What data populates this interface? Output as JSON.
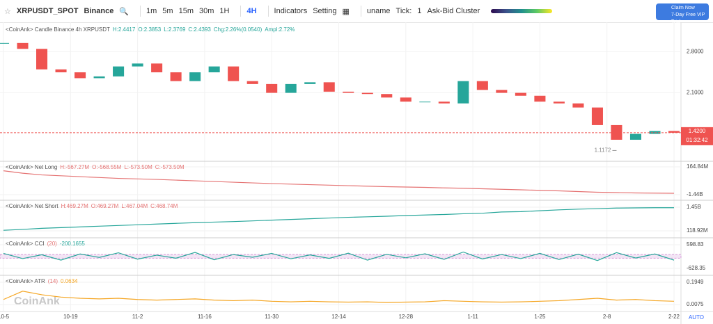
{
  "toolbar": {
    "symbol": "XRPUSDT_SPOT",
    "exchange": "Binance",
    "intervals": [
      "1m",
      "5m",
      "15m",
      "30m",
      "1H",
      "4H"
    ],
    "indicators": "Indicators",
    "setting": "Setting",
    "user": "uname",
    "tick_label": "Tick:",
    "tick_value": "1",
    "cluster": "Ask-Bid Cluster",
    "vip": [
      "Claim Now",
      "7-Day Free VIP Trial"
    ]
  },
  "watermark": "CoinAnk",
  "auto": "AUTO",
  "x": [
    0,
    4,
    8,
    12,
    16,
    20,
    24,
    28,
    32,
    36,
    40,
    44,
    48,
    52,
    56,
    60,
    64,
    68,
    72,
    76,
    80,
    84,
    88,
    92,
    96,
    100,
    104,
    108,
    112,
    116,
    120,
    124,
    128,
    132,
    136,
    140
  ],
  "x_axis": {
    "xlim": [
      0,
      140
    ],
    "xticks": [
      {
        "value": 0,
        "label": "10-5"
      },
      {
        "value": 14,
        "label": "10-19"
      },
      {
        "value": 28,
        "label": "11-2"
      },
      {
        "value": 42,
        "label": "11-16"
      },
      {
        "value": 56,
        "label": "11-30"
      },
      {
        "value": 70,
        "label": "12-14"
      },
      {
        "value": 84,
        "label": "12-28"
      },
      {
        "value": 98,
        "label": "1-11"
      },
      {
        "value": 112,
        "label": "1-25"
      },
      {
        "value": 126,
        "label": "2-8"
      },
      {
        "value": 140,
        "label": "2-22"
      }
    ]
  },
  "panes": [
    {
      "type": "candle",
      "legend": [
        "<CoinAnk> Candle  Binance 4h XRPUSDT",
        "H:2.4417",
        "O:2.3853",
        "L:2.3769",
        "C:2.4393",
        "Chg:2.26%(0.0540)",
        "Ampl:2.72%"
      ],
      "ylim": [
        0.98,
        3.28
      ],
      "yticks": [
        {
          "value": 2.8,
          "label": "2.8000"
        },
        {
          "value": 2.1,
          "label": "2.1000"
        }
      ],
      "values": [
        2.95,
        2.85,
        2.5,
        2.45,
        2.35,
        2.38,
        2.55,
        2.6,
        2.45,
        2.3,
        2.45,
        2.55,
        2.3,
        2.25,
        2.1,
        2.25,
        2.28,
        2.12,
        2.1,
        2.08,
        2.02,
        1.95,
        1.95,
        1.92,
        2.3,
        2.15,
        2.1,
        2.05,
        1.95,
        1.92,
        1.85,
        1.55,
        1.3,
        1.4,
        1.45,
        1.42
      ],
      "up": "#26a69a",
      "down": "#ef5350",
      "last": {
        "value": 1.42,
        "label": "1.4200"
      },
      "countdown": "01:32:42",
      "low": {
        "value": 1.1172,
        "label": "1.1172",
        "x": 128
      }
    },
    {
      "type": "line",
      "legend": [
        "<CoinAnk> Net Long",
        "H:-567.27M",
        "O:-568.55M",
        "L:-573.50M",
        "C:-573.50M"
      ],
      "ylim": [
        -1440,
        164.84
      ],
      "yticks": [
        {
          "value": 164.84,
          "label": "164.84M"
        },
        {
          "value": -1440,
          "label": "-1.44B"
        }
      ],
      "color": "#e57373",
      "values": [
        -60,
        -200,
        -300,
        -350,
        -400,
        -450,
        -500,
        -530,
        -560,
        -600,
        -640,
        -680,
        -720,
        -760,
        -800,
        -830,
        -860,
        -890,
        -920,
        -950,
        -980,
        -1000,
        -1020,
        -1050,
        -1070,
        -1100,
        -1130,
        -1160,
        -1190,
        -1220,
        -1260,
        -1300,
        -1320,
        -1340,
        -1350,
        -1360
      ]
    },
    {
      "type": "line",
      "legend": [
        "<CoinAnk> Net Short",
        "H:469.27M",
        "O:469.27M",
        "L:467.04M",
        "C:468.74M"
      ],
      "ylim": [
        118.92,
        1450
      ],
      "yticks": [
        {
          "value": 1450,
          "label": "1.45B"
        },
        {
          "value": 118.92,
          "label": "118.92M"
        }
      ],
      "color": "#26a69a",
      "values": [
        150,
        200,
        260,
        300,
        340,
        380,
        420,
        460,
        500,
        540,
        580,
        610,
        640,
        680,
        720,
        760,
        800,
        840,
        880,
        910,
        940,
        980,
        1010,
        1040,
        1080,
        1110,
        1180,
        1200,
        1250,
        1300,
        1340,
        1370,
        1400,
        1410,
        1420,
        1420
      ]
    },
    {
      "type": "line",
      "legend": [
        "<CoinAnk> CCI",
        "(20)",
        "-200.1655"
      ],
      "ylim": [
        -628.35,
        598.83
      ],
      "yticks": [
        {
          "value": 598.83,
          "label": "598.83"
        },
        {
          "value": -628.35,
          "label": "-628.35"
        }
      ],
      "band": [
        -100,
        100
      ],
      "color": "#26a69a",
      "values": [
        150,
        -120,
        80,
        -200,
        120,
        -60,
        180,
        -150,
        60,
        -100,
        200,
        -180,
        90,
        -50,
        150,
        -130,
        70,
        -110,
        160,
        -200,
        100,
        -80,
        130,
        -160,
        220,
        -140,
        90,
        -120,
        150,
        -170,
        110,
        -220,
        190,
        -90,
        120,
        -200
      ]
    },
    {
      "type": "line",
      "legend": [
        "<CoinAnk> ATR",
        "(14)",
        "0.0634"
      ],
      "ylim": [
        0.0075,
        0.1949
      ],
      "yticks": [
        0.1949,
        0.0075
      ],
      "color": "#f5a623",
      "values": [
        0.05,
        0.12,
        0.09,
        0.07,
        0.06,
        0.055,
        0.06,
        0.05,
        0.045,
        0.05,
        0.055,
        0.045,
        0.04,
        0.045,
        0.035,
        0.03,
        0.035,
        0.03,
        0.028,
        0.03,
        0.025,
        0.028,
        0.03,
        0.04,
        0.035,
        0.03,
        0.028,
        0.03,
        0.035,
        0.04,
        0.05,
        0.06,
        0.045,
        0.05,
        0.04,
        0.035
      ]
    }
  ]
}
